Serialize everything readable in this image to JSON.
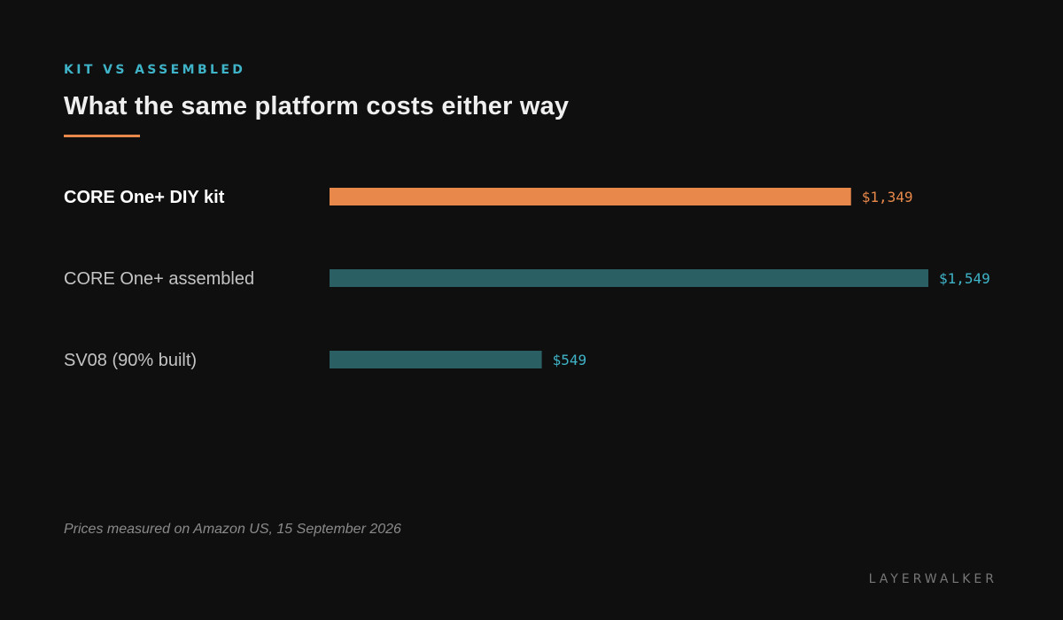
{
  "header": {
    "eyebrow": "KIT VS ASSEMBLED",
    "title": "What the same platform costs either way"
  },
  "footnote": "Prices measured on Amazon US, 15 September 2026",
  "brand": "LAYERWALKER",
  "colors": {
    "background": "#0f0f0f",
    "highlight_bar": "#e8884a",
    "standard_bar": "#2a5f64",
    "highlight_value": "#e8884a",
    "standard_value": "#3fb4c8",
    "highlight_label": "#ffffff",
    "standard_label": "#c4c4c4",
    "eyebrow": "#3fb4c8"
  },
  "chart_data": {
    "type": "bar",
    "orientation": "horizontal",
    "categories": [
      "CORE One+ DIY kit",
      "CORE One+ assembled",
      "SV08 (90% built)"
    ],
    "values": [
      1349,
      1549,
      549
    ],
    "value_labels": [
      "$1,349",
      "$1,549",
      "$549"
    ],
    "highlighted": [
      true,
      false,
      false
    ],
    "title": "What the same platform costs either way",
    "xlim": [
      0,
      1549
    ],
    "grid": false,
    "legend": "none"
  }
}
